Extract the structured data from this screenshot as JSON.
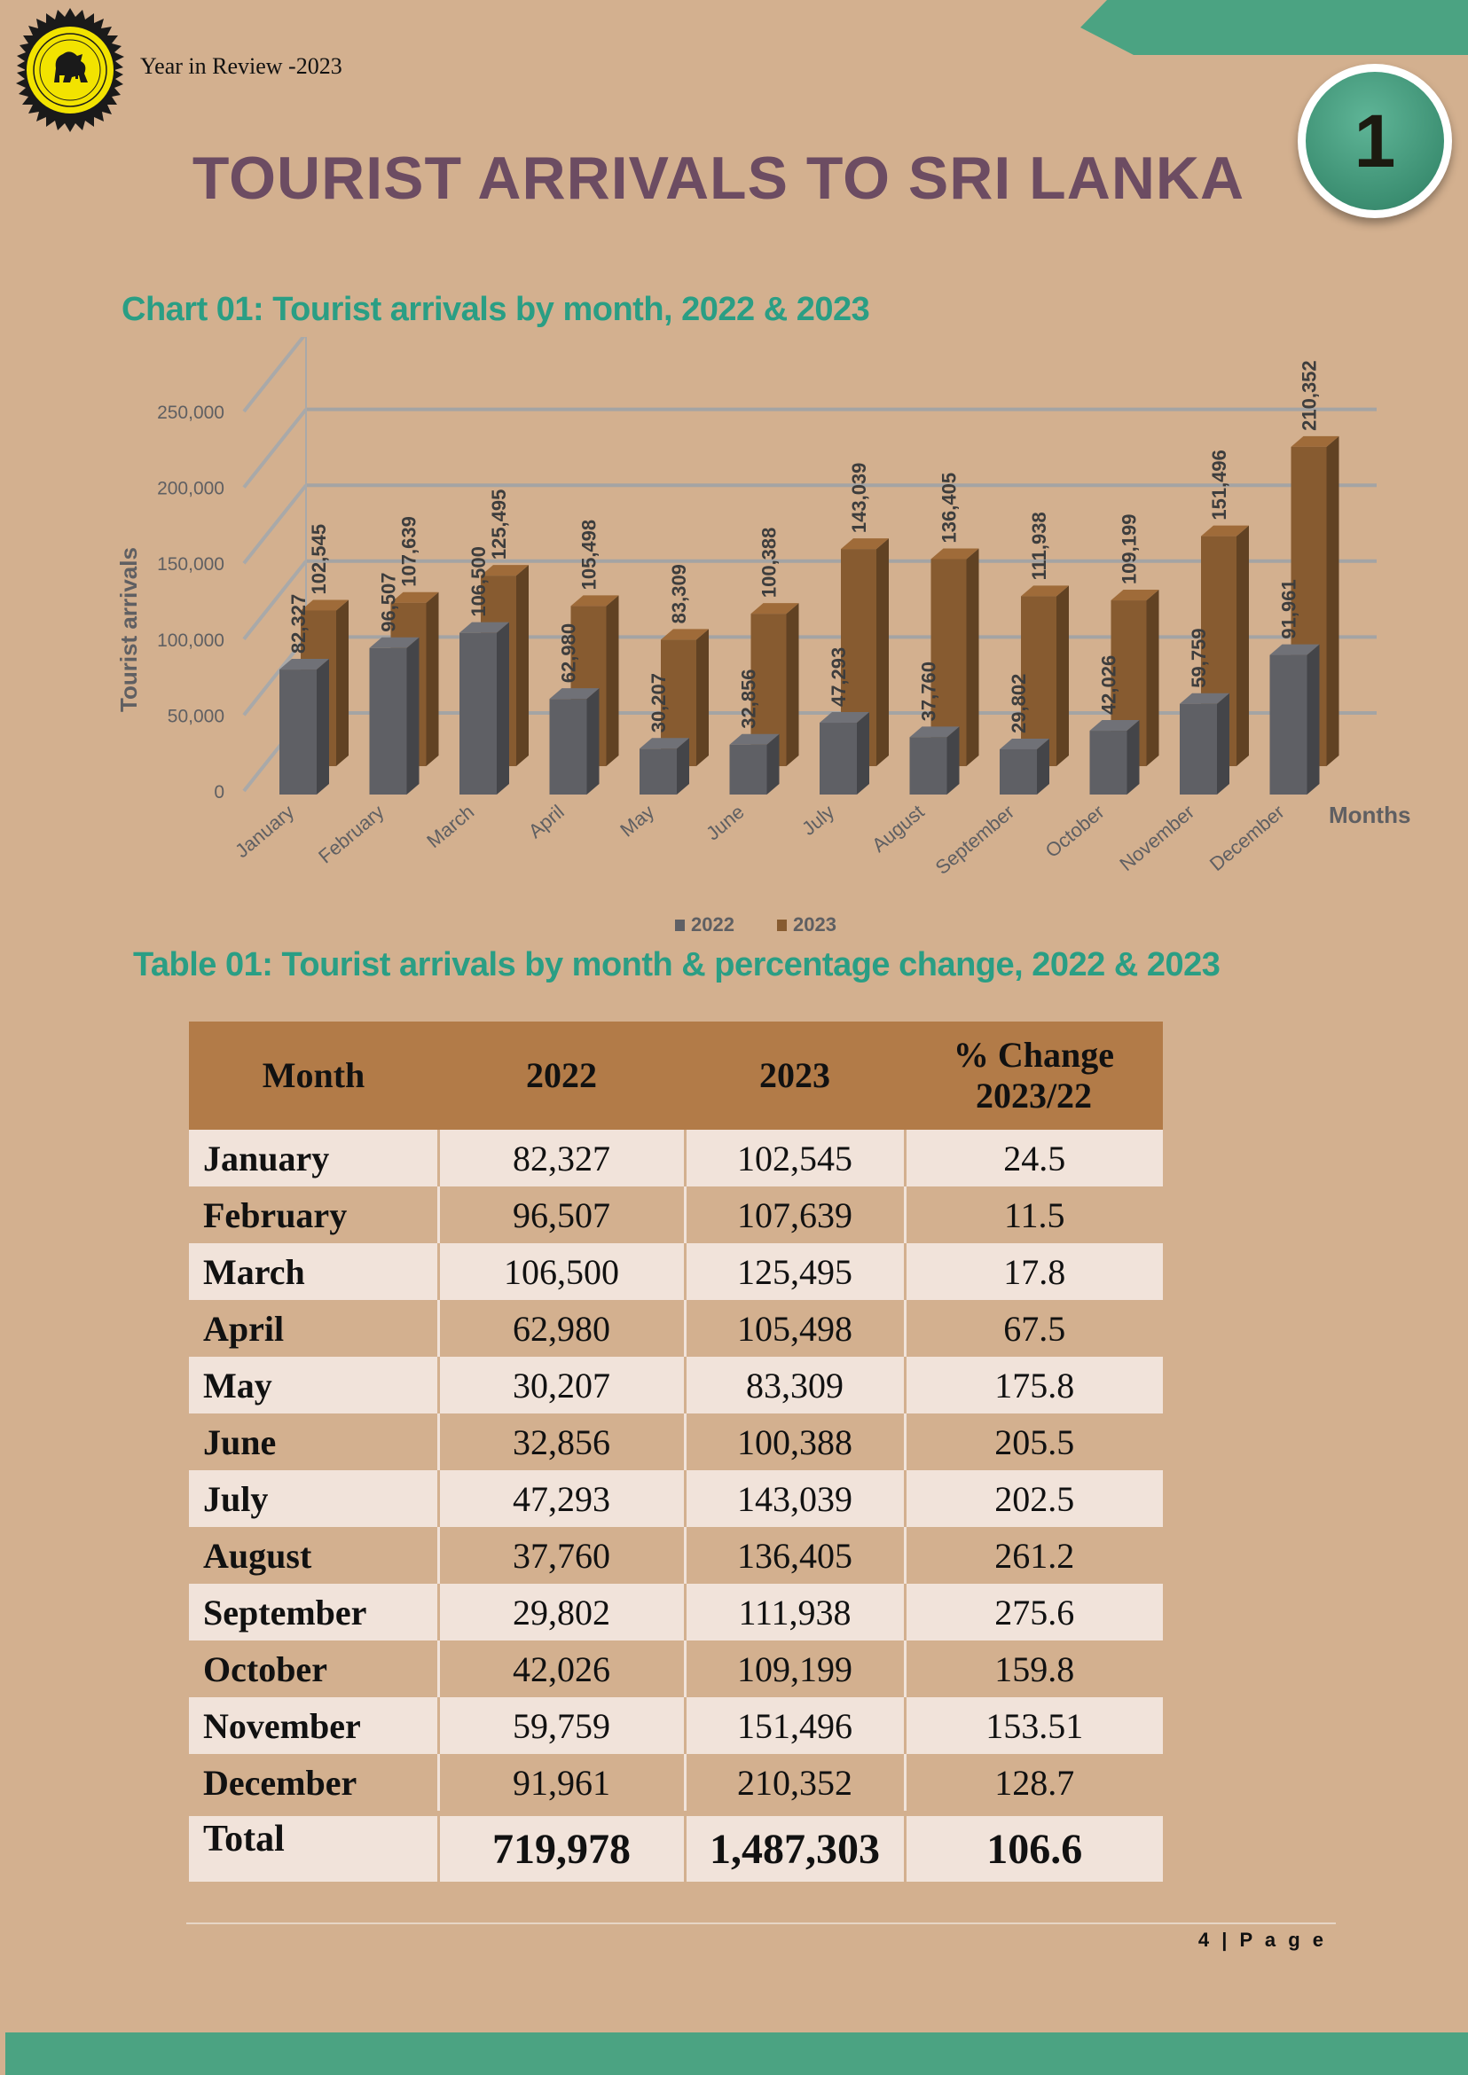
{
  "header": {
    "text": "Year in Review -2023",
    "page_badge": "1",
    "logo_icon": "sri-lanka-lion-emblem",
    "band_color": "#4ba382"
  },
  "page_title": "TOURIST ARRIVALS TO SRI LANKA",
  "chart_data": {
    "type": "bar",
    "title": "Chart 01: Tourist arrivals by month, 2022 & 2023",
    "ylabel": "Tourist  arrivals",
    "xlabel": "Months",
    "categories": [
      "January",
      "February",
      "March",
      "April",
      "May",
      "June",
      "July",
      "August",
      "September",
      "October",
      "November",
      "December"
    ],
    "series": [
      {
        "name": "2022",
        "color": "#5f6065",
        "values": [
          82327,
          96507,
          106500,
          62980,
          30207,
          32856,
          47293,
          37760,
          29802,
          42026,
          59759,
          91961
        ]
      },
      {
        "name": "2023",
        "color": "#875b30",
        "values": [
          102545,
          107639,
          125495,
          105498,
          83309,
          100388,
          143039,
          136405,
          111938,
          109199,
          151496,
          210352
        ]
      }
    ],
    "ylim": [
      0,
      250000
    ],
    "yticks": [
      0,
      50000,
      100000,
      150000,
      200000,
      250000
    ],
    "grid": true,
    "legend_position": "bottom"
  },
  "table": {
    "title": "Table 01: Tourist arrivals by month & percentage change, 2022 & 2023",
    "headers": [
      "Month",
      "2022",
      "2023",
      "% Change 2023/22"
    ],
    "rows": [
      [
        "January",
        "82,327",
        "102,545",
        "24.5"
      ],
      [
        "February",
        "96,507",
        "107,639",
        "11.5"
      ],
      [
        "March",
        "106,500",
        "125,495",
        "17.8"
      ],
      [
        "April",
        "62,980",
        "105,498",
        "67.5"
      ],
      [
        "May",
        "30,207",
        "83,309",
        "175.8"
      ],
      [
        "June",
        "32,856",
        "100,388",
        "205.5"
      ],
      [
        "July",
        "47,293",
        "143,039",
        "202.5"
      ],
      [
        "August",
        "37,760",
        "136,405",
        "261.2"
      ],
      [
        "September",
        "29,802",
        "111,938",
        "275.6"
      ],
      [
        "October",
        "42,026",
        "109,199",
        "159.8"
      ],
      [
        "November",
        "59,759",
        "151,496",
        "153.51"
      ],
      [
        "December",
        "91,961",
        "210,352",
        "128.7"
      ]
    ],
    "total": [
      "Total",
      "719,978",
      "1,487,303",
      "106.6"
    ]
  },
  "footer": {
    "page_label": "4 | P a g e"
  }
}
